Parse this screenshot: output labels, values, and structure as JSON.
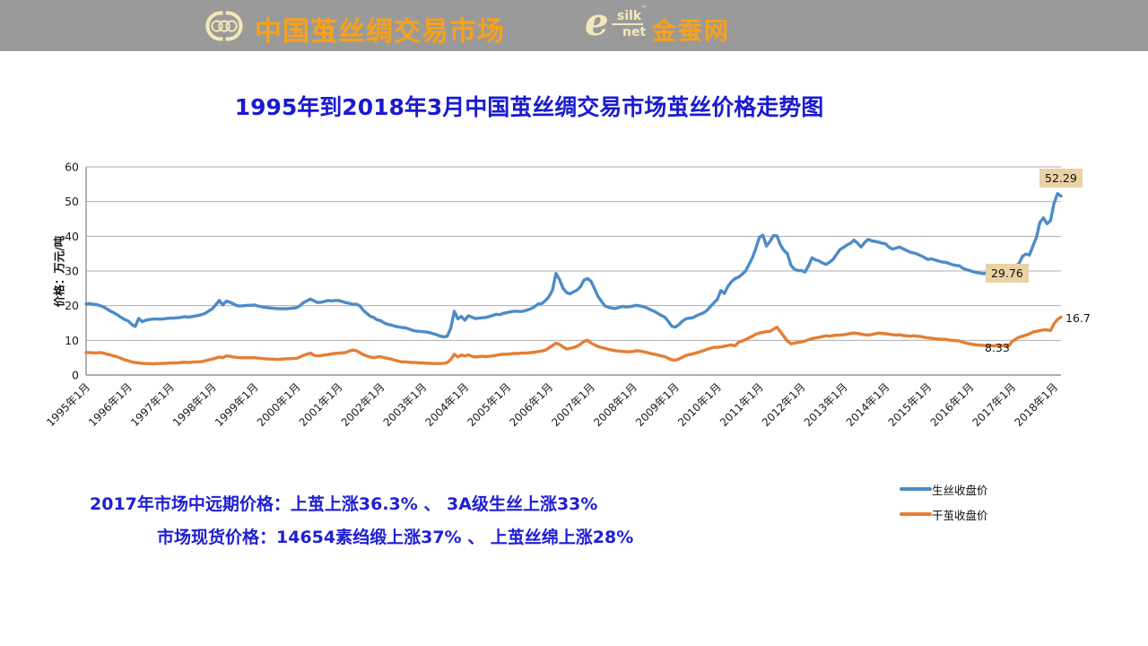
{
  "header": {
    "brand": "中国茧丝绸交易市场",
    "esilk": {
      "e": "e",
      "silk": "silk",
      "net": "net",
      "tm": "™",
      "site": "金蚕网"
    },
    "colors": {
      "bg": "#9a9a9a",
      "brand_orange": "#f7a21b",
      "pale_yellow": "#f2e9b8"
    }
  },
  "title": "1995年到2018年3月中国茧丝绸交易市场茧丝价格走势图",
  "annotations": {
    "line1": "2017年市场中远期价格：上茧上涨36.3% 、 3A级生丝上涨33%",
    "line2": "市场现货价格：14654素绉缎上涨37% 、 上茧丝绵上涨28%"
  },
  "chart_data": {
    "type": "line",
    "title": "1995年到2018年3月中国茧丝绸交易市场茧丝价格走势图",
    "xlabel": "",
    "ylabel": "价格：万元/吨",
    "ylim": [
      0,
      60
    ],
    "y_ticks": [
      0,
      10,
      20,
      30,
      40,
      50,
      60
    ],
    "grid": true,
    "legend_position": "bottom-right",
    "x_tick_interval": 12,
    "x_ticks": [
      "1995年1月",
      "1996年1月",
      "1997年1月",
      "1998年1月",
      "1999年1月",
      "2000年1月",
      "2001年1月",
      "2002年1月",
      "2003年1月",
      "2004年1月",
      "2005年1月",
      "2006年1月",
      "2007年1月",
      "2008年1月",
      "2009年1月",
      "2010年1月",
      "2011年1月",
      "2012年1月",
      "2013年1月",
      "2014年1月",
      "2015年1月",
      "2016年1月",
      "2017年1月",
      "2018年1月"
    ],
    "x_unit": "monthly from 1995-01 to 2018-03",
    "highlight_color": "#e9d2a4",
    "series": [
      {
        "name": "生丝收盘价",
        "color": "#4d8cc6",
        "values": [
          20.5,
          20.6,
          20.4,
          20.3,
          20.0,
          19.6,
          19.0,
          18.4,
          17.9,
          17.3,
          16.6,
          16.0,
          15.6,
          14.6,
          14.0,
          16.3,
          15.4,
          15.8,
          16.0,
          16.1,
          16.2,
          16.1,
          16.2,
          16.3,
          16.4,
          16.4,
          16.5,
          16.6,
          16.8,
          16.7,
          16.8,
          17.0,
          17.2,
          17.4,
          17.8,
          18.5,
          19.1,
          20.3,
          21.5,
          20.2,
          21.3,
          21.0,
          20.5,
          20.0,
          19.9,
          20.0,
          20.1,
          20.1,
          20.2,
          19.9,
          19.7,
          19.5,
          19.4,
          19.3,
          19.2,
          19.1,
          19.1,
          19.1,
          19.2,
          19.3,
          19.4,
          20.0,
          20.9,
          21.4,
          21.9,
          21.4,
          20.9,
          21.0,
          21.2,
          21.5,
          21.4,
          21.5,
          21.5,
          21.2,
          20.9,
          20.7,
          20.4,
          20.4,
          20.0,
          18.7,
          17.8,
          17.0,
          16.6,
          15.9,
          15.7,
          15.0,
          14.6,
          14.4,
          14.1,
          13.9,
          13.7,
          13.6,
          13.3,
          12.9,
          12.7,
          12.6,
          12.5,
          12.4,
          12.2,
          11.9,
          11.6,
          11.2,
          11.0,
          11.2,
          13.5,
          18.4,
          16.2,
          16.9,
          15.8,
          17.1,
          16.7,
          16.3,
          16.4,
          16.5,
          16.6,
          16.9,
          17.2,
          17.5,
          17.4,
          17.8,
          18.0,
          18.2,
          18.4,
          18.4,
          18.3,
          18.5,
          18.8,
          19.2,
          19.8,
          20.5,
          20.6,
          21.5,
          22.6,
          24.5,
          29.3,
          27.5,
          25.0,
          23.8,
          23.4,
          24.0,
          24.5,
          25.5,
          27.4,
          27.8,
          27.0,
          24.8,
          22.6,
          21.2,
          19.9,
          19.5,
          19.3,
          19.2,
          19.5,
          19.8,
          19.6,
          19.7,
          19.9,
          20.1,
          19.9,
          19.7,
          19.3,
          18.8,
          18.4,
          17.8,
          17.2,
          16.7,
          15.5,
          14.1,
          13.8,
          14.5,
          15.5,
          16.2,
          16.4,
          16.5,
          17.1,
          17.5,
          17.9,
          18.6,
          19.7,
          20.8,
          21.8,
          24.4,
          23.5,
          25.5,
          26.9,
          27.8,
          28.2,
          29.0,
          29.9,
          31.8,
          33.8,
          36.5,
          39.7,
          40.3,
          37.2,
          38.5,
          40.2,
          40.1,
          37.5,
          35.9,
          35.0,
          31.6,
          30.5,
          30.1,
          30.1,
          29.7,
          31.5,
          33.8,
          33.2,
          32.9,
          32.3,
          31.9,
          32.5,
          33.3,
          34.8,
          36.2,
          36.8,
          37.5,
          38.0,
          38.9,
          38.0,
          36.9,
          38.2,
          39.1,
          38.7,
          38.5,
          38.3,
          38.0,
          37.8,
          36.8,
          36.3,
          36.6,
          36.9,
          36.4,
          35.9,
          35.4,
          35.2,
          34.9,
          34.4,
          33.9,
          33.3,
          33.5,
          33.2,
          32.9,
          32.6,
          32.5,
          32.2,
          31.8,
          31.6,
          31.5,
          30.8,
          30.4,
          30.1,
          29.8,
          29.5,
          29.4,
          29.2,
          29.5,
          29.7,
          29.5,
          29.8,
          30.1,
          29.9,
          29.76,
          30.3,
          31.5,
          32.1,
          34.2,
          34.9,
          34.6,
          37.2,
          39.7,
          44.0,
          45.3,
          43.6,
          44.5,
          49.5,
          52.29,
          51.6
        ]
      },
      {
        "name": "干茧收盘价",
        "color": "#e67e33",
        "values": [
          6.5,
          6.5,
          6.4,
          6.4,
          6.5,
          6.3,
          6.0,
          5.8,
          5.5,
          5.2,
          4.8,
          4.4,
          4.1,
          3.8,
          3.6,
          3.5,
          3.4,
          3.3,
          3.3,
          3.2,
          3.3,
          3.3,
          3.4,
          3.4,
          3.5,
          3.5,
          3.5,
          3.6,
          3.7,
          3.6,
          3.7,
          3.8,
          3.8,
          3.9,
          4.1,
          4.4,
          4.6,
          4.9,
          5.2,
          5.0,
          5.5,
          5.4,
          5.2,
          5.1,
          5.0,
          5.0,
          5.0,
          5.0,
          5.0,
          4.9,
          4.8,
          4.7,
          4.6,
          4.6,
          4.5,
          4.5,
          4.6,
          4.7,
          4.7,
          4.8,
          4.8,
          5.2,
          5.7,
          6.0,
          6.3,
          5.7,
          5.5,
          5.6,
          5.8,
          5.9,
          6.1,
          6.2,
          6.3,
          6.4,
          6.5,
          6.9,
          7.2,
          7.0,
          6.5,
          5.9,
          5.5,
          5.2,
          5.0,
          5.2,
          5.3,
          5.0,
          4.8,
          4.6,
          4.3,
          4.0,
          3.8,
          3.8,
          3.7,
          3.6,
          3.6,
          3.5,
          3.5,
          3.4,
          3.4,
          3.3,
          3.3,
          3.3,
          3.4,
          3.6,
          4.5,
          6.0,
          5.2,
          5.8,
          5.5,
          5.8,
          5.4,
          5.2,
          5.3,
          5.4,
          5.3,
          5.4,
          5.5,
          5.7,
          5.9,
          6.0,
          6.0,
          6.1,
          6.2,
          6.2,
          6.3,
          6.3,
          6.4,
          6.5,
          6.6,
          6.8,
          6.9,
          7.2,
          7.8,
          8.5,
          9.2,
          8.8,
          8.1,
          7.5,
          7.7,
          7.9,
          8.3,
          8.9,
          9.7,
          10.0,
          9.2,
          8.7,
          8.2,
          7.9,
          7.7,
          7.4,
          7.2,
          7.0,
          6.9,
          6.8,
          6.7,
          6.7,
          6.8,
          7.0,
          6.9,
          6.7,
          6.5,
          6.2,
          6.0,
          5.8,
          5.5,
          5.3,
          4.8,
          4.4,
          4.3,
          4.6,
          5.1,
          5.6,
          5.9,
          6.1,
          6.4,
          6.7,
          7.0,
          7.4,
          7.7,
          8.0,
          8.0,
          8.1,
          8.3,
          8.5,
          8.7,
          8.4,
          9.4,
          9.8,
          10.2,
          10.7,
          11.2,
          11.8,
          12.1,
          12.3,
          12.5,
          12.6,
          13.2,
          13.8,
          12.5,
          11.1,
          9.8,
          9.0,
          9.2,
          9.4,
          9.6,
          9.8,
          10.2,
          10.5,
          10.7,
          10.9,
          11.1,
          11.3,
          11.2,
          11.4,
          11.5,
          11.5,
          11.6,
          11.8,
          12.0,
          12.1,
          12.0,
          11.8,
          11.6,
          11.5,
          11.7,
          11.9,
          12.1,
          12.0,
          11.9,
          11.8,
          11.6,
          11.5,
          11.6,
          11.4,
          11.3,
          11.2,
          11.3,
          11.2,
          11.1,
          10.9,
          10.7,
          10.6,
          10.5,
          10.4,
          10.3,
          10.3,
          10.1,
          10.0,
          9.9,
          9.8,
          9.5,
          9.2,
          9.0,
          8.8,
          8.7,
          8.6,
          8.5,
          8.4,
          8.5,
          8.4,
          8.5,
          8.5,
          8.4,
          8.33,
          9.6,
          10.3,
          10.9,
          11.2,
          11.5,
          11.9,
          12.4,
          12.6,
          12.8,
          13.0,
          13.0,
          12.8,
          14.8,
          16.0,
          16.7
        ]
      }
    ],
    "point_labels": [
      {
        "text": "52.29",
        "series": "生丝收盘价",
        "highlight": true
      },
      {
        "text": "29.76",
        "series": "生丝收盘价",
        "highlight": true
      },
      {
        "text": "16.7",
        "series": "干茧收盘价",
        "highlight": false
      },
      {
        "text": "8.33",
        "series": "干茧收盘价",
        "highlight": false
      }
    ]
  }
}
